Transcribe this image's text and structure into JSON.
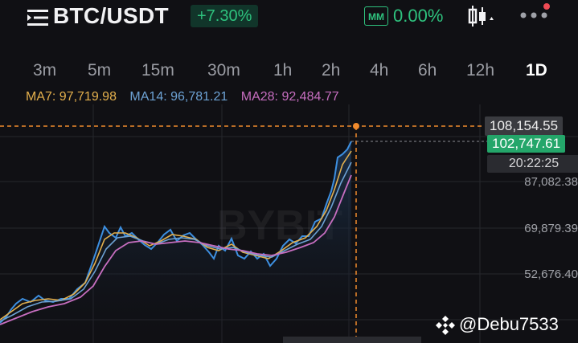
{
  "header": {
    "pair": "BTC/USDT",
    "change": "+7.30%",
    "mm_badge": "MM",
    "mm_percent": "0.00%",
    "colors": {
      "up": "#2ec27e",
      "background": "#101014"
    }
  },
  "tabs": [
    {
      "label": "3m"
    },
    {
      "label": "5m"
    },
    {
      "label": "15m"
    },
    {
      "label": "30m"
    },
    {
      "label": "1h"
    },
    {
      "label": "2h"
    },
    {
      "label": "4h"
    },
    {
      "label": "6h"
    },
    {
      "label": "12h"
    },
    {
      "label": "1D",
      "active": true
    }
  ],
  "ma": {
    "ma7": "MA7: 97,719.98",
    "ma14": "MA14: 96,781.21",
    "ma28": "MA28: 92,484.77"
  },
  "price_axis": {
    "hover_price": "108,154.55",
    "last_price": "102,747.61",
    "countdown": "20:22:25",
    "ticks": [
      "87,082.38",
      "69,879.39",
      "52,676.40"
    ]
  },
  "watermark": {
    "brand": "BYBIT",
    "user": "@Debu7533"
  },
  "icons": {
    "menu": "menu-icon",
    "chart_type": "candlestick-icon",
    "more": "more-dots-icon",
    "notification": "notification-dot-icon",
    "user_logo": "diamond-logo-icon"
  }
}
